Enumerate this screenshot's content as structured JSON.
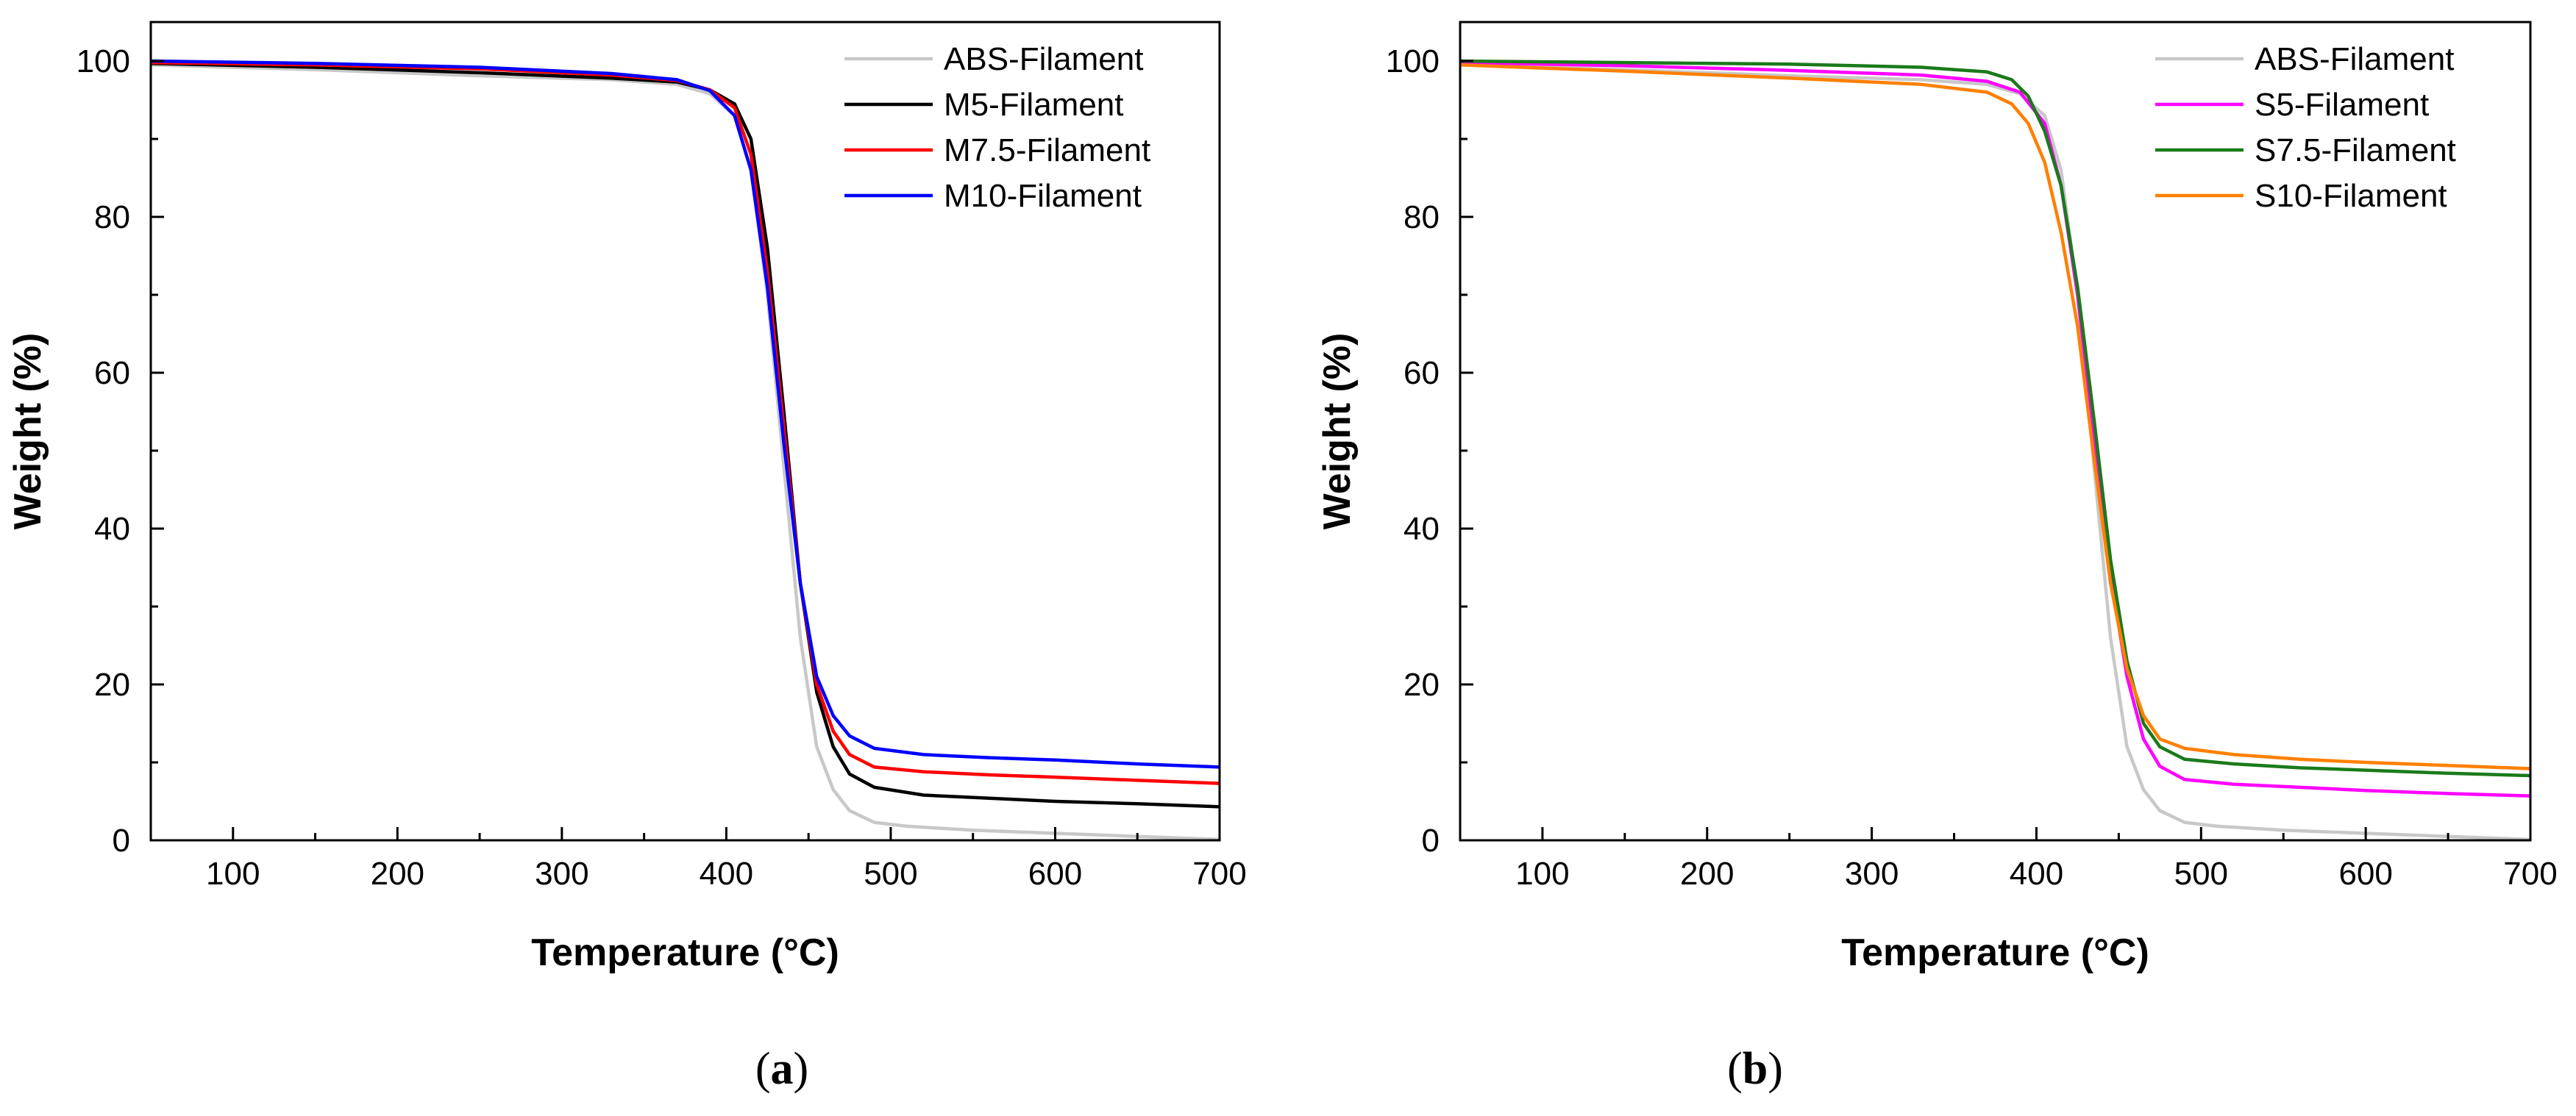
{
  "chart_data": [
    {
      "type": "line",
      "caption": "(a)",
      "caption_open": "(",
      "caption_letter": "a",
      "caption_close": ")",
      "xlabel": "Temperature (°C)",
      "ylabel": "Weight (%)",
      "xlim": [
        50,
        700
      ],
      "ylim": [
        0,
        105
      ],
      "xticks": [
        100,
        200,
        300,
        400,
        500,
        600,
        700
      ],
      "yticks": [
        0,
        20,
        40,
        60,
        80,
        100
      ],
      "grid": false,
      "legend_position": "top-right",
      "series": [
        {
          "name": "ABS-Filament",
          "color": "#c8c8c8",
          "points": [
            [
              50,
              99.5
            ],
            [
              150,
              98.9
            ],
            [
              250,
              98.1
            ],
            [
              330,
              97.6
            ],
            [
              370,
              97.0
            ],
            [
              390,
              95.8
            ],
            [
              405,
              93
            ],
            [
              415,
              86
            ],
            [
              425,
              70
            ],
            [
              435,
              48
            ],
            [
              445,
              26
            ],
            [
              455,
              12
            ],
            [
              465,
              6.5
            ],
            [
              475,
              3.8
            ],
            [
              490,
              2.3
            ],
            [
              510,
              1.8
            ],
            [
              550,
              1.3
            ],
            [
              600,
              0.9
            ],
            [
              650,
              0.5
            ],
            [
              700,
              0.1
            ]
          ]
        },
        {
          "name": "M5-Filament",
          "color": "#000000",
          "points": [
            [
              50,
              99.7
            ],
            [
              150,
              99.2
            ],
            [
              250,
              98.5
            ],
            [
              330,
              97.8
            ],
            [
              370,
              97.3
            ],
            [
              390,
              96.3
            ],
            [
              405,
              94.5
            ],
            [
              415,
              90
            ],
            [
              425,
              76
            ],
            [
              435,
              55
            ],
            [
              445,
              33
            ],
            [
              455,
              19
            ],
            [
              465,
              12
            ],
            [
              475,
              8.5
            ],
            [
              490,
              6.8
            ],
            [
              520,
              5.8
            ],
            [
              560,
              5.4
            ],
            [
              600,
              5.0
            ],
            [
              650,
              4.7
            ],
            [
              700,
              4.3
            ]
          ]
        },
        {
          "name": "M7.5-Filament",
          "color": "#ff0000",
          "points": [
            [
              50,
              99.8
            ],
            [
              150,
              99.5
            ],
            [
              250,
              99.0
            ],
            [
              330,
              98.2
            ],
            [
              370,
              97.5
            ],
            [
              390,
              96.3
            ],
            [
              405,
              94
            ],
            [
              415,
              88
            ],
            [
              425,
              73
            ],
            [
              435,
              53
            ],
            [
              445,
              33
            ],
            [
              455,
              20
            ],
            [
              465,
              14
            ],
            [
              475,
              11
            ],
            [
              490,
              9.4
            ],
            [
              520,
              8.8
            ],
            [
              560,
              8.4
            ],
            [
              600,
              8.1
            ],
            [
              650,
              7.7
            ],
            [
              700,
              7.3
            ]
          ]
        },
        {
          "name": "M10-Filament",
          "color": "#0000ff",
          "points": [
            [
              50,
              100
            ],
            [
              150,
              99.7
            ],
            [
              250,
              99.2
            ],
            [
              330,
              98.4
            ],
            [
              370,
              97.6
            ],
            [
              390,
              96.2
            ],
            [
              405,
              93
            ],
            [
              415,
              86
            ],
            [
              425,
              71
            ],
            [
              435,
              51
            ],
            [
              445,
              33
            ],
            [
              455,
              21
            ],
            [
              465,
              16
            ],
            [
              475,
              13.4
            ],
            [
              490,
              11.8
            ],
            [
              520,
              11.0
            ],
            [
              560,
              10.6
            ],
            [
              600,
              10.3
            ],
            [
              650,
              9.8
            ],
            [
              700,
              9.4
            ]
          ]
        }
      ]
    },
    {
      "type": "line",
      "caption": "(b)",
      "caption_open": "(",
      "caption_letter": "b",
      "caption_close": ")",
      "xlabel": "Temperature (°C)",
      "ylabel": "Weight (%)",
      "xlim": [
        50,
        700
      ],
      "ylim": [
        0,
        105
      ],
      "xticks": [
        100,
        200,
        300,
        400,
        500,
        600,
        700
      ],
      "yticks": [
        0,
        20,
        40,
        60,
        80,
        100
      ],
      "grid": false,
      "legend_position": "top-right",
      "series": [
        {
          "name": "ABS-Filament",
          "color": "#c8c8c8",
          "points": [
            [
              50,
              99.5
            ],
            [
              150,
              98.9
            ],
            [
              250,
              98.1
            ],
            [
              330,
              97.6
            ],
            [
              370,
              97.0
            ],
            [
              390,
              95.8
            ],
            [
              405,
              93
            ],
            [
              415,
              86
            ],
            [
              425,
              70
            ],
            [
              435,
              48
            ],
            [
              445,
              26
            ],
            [
              455,
              12
            ],
            [
              465,
              6.5
            ],
            [
              475,
              3.8
            ],
            [
              490,
              2.3
            ],
            [
              510,
              1.8
            ],
            [
              550,
              1.3
            ],
            [
              600,
              0.9
            ],
            [
              650,
              0.5
            ],
            [
              700,
              0.1
            ]
          ]
        },
        {
          "name": "S5-Filament",
          "color": "#ff00ff",
          "points": [
            [
              50,
              99.8
            ],
            [
              150,
              99.4
            ],
            [
              250,
              98.8
            ],
            [
              330,
              98.2
            ],
            [
              370,
              97.4
            ],
            [
              390,
              96
            ],
            [
              405,
              92
            ],
            [
              415,
              84
            ],
            [
              425,
              70
            ],
            [
              435,
              52
            ],
            [
              445,
              34
            ],
            [
              455,
              21
            ],
            [
              465,
              13
            ],
            [
              475,
              9.5
            ],
            [
              490,
              7.8
            ],
            [
              520,
              7.2
            ],
            [
              560,
              6.8
            ],
            [
              600,
              6.4
            ],
            [
              650,
              6.0
            ],
            [
              700,
              5.7
            ]
          ]
        },
        {
          "name": "S7.5-Filament",
          "color": "#1a7a1a",
          "points": [
            [
              50,
              100
            ],
            [
              150,
              99.8
            ],
            [
              250,
              99.6
            ],
            [
              330,
              99.2
            ],
            [
              370,
              98.6
            ],
            [
              385,
              97.6
            ],
            [
              395,
              95.5
            ],
            [
              405,
              91
            ],
            [
              415,
              84
            ],
            [
              425,
              71
            ],
            [
              435,
              54
            ],
            [
              445,
              36
            ],
            [
              455,
              23
            ],
            [
              465,
              15
            ],
            [
              475,
              12
            ],
            [
              490,
              10.4
            ],
            [
              520,
              9.8
            ],
            [
              560,
              9.3
            ],
            [
              600,
              9.0
            ],
            [
              650,
              8.6
            ],
            [
              700,
              8.3
            ]
          ]
        },
        {
          "name": "S10-Filament",
          "color": "#ff8000",
          "points": [
            [
              50,
              99.5
            ],
            [
              150,
              98.7
            ],
            [
              250,
              97.8
            ],
            [
              330,
              97.0
            ],
            [
              370,
              96.0
            ],
            [
              385,
              94.5
            ],
            [
              395,
              92
            ],
            [
              405,
              87
            ],
            [
              415,
              78
            ],
            [
              425,
              66
            ],
            [
              435,
              49
            ],
            [
              445,
              33
            ],
            [
              455,
              22
            ],
            [
              465,
              16
            ],
            [
              475,
              13
            ],
            [
              490,
              11.8
            ],
            [
              520,
              11.0
            ],
            [
              560,
              10.4
            ],
            [
              600,
              10.0
            ],
            [
              650,
              9.6
            ],
            [
              700,
              9.2
            ]
          ]
        }
      ]
    }
  ]
}
